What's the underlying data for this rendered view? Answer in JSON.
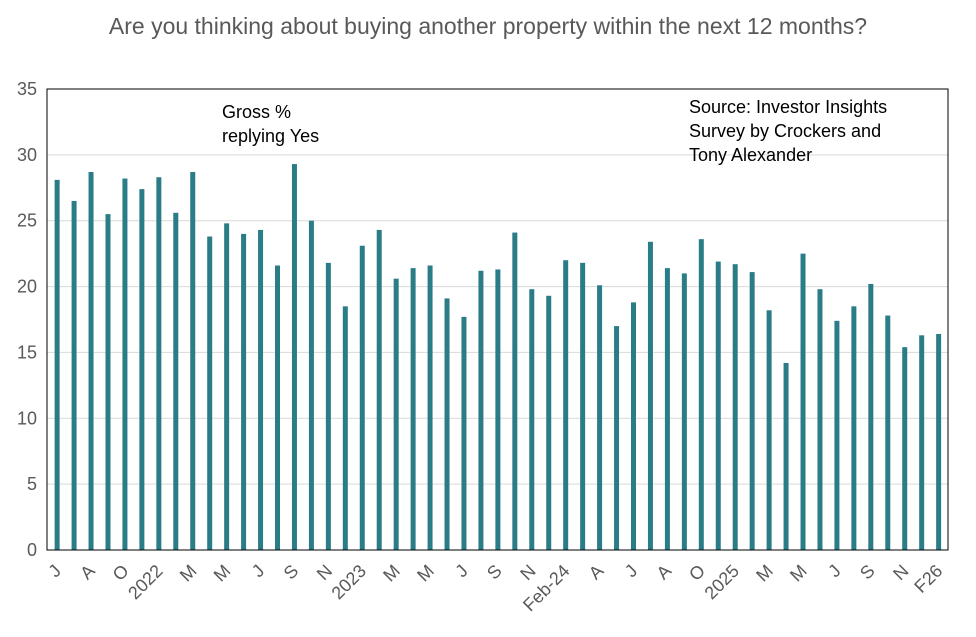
{
  "chart_data": {
    "type": "bar",
    "title": "Are you thinking about buying another property within the next 12 months?",
    "xlabel": "",
    "ylabel": "",
    "ylim": [
      0,
      35
    ],
    "yticks": [
      0,
      5,
      10,
      15,
      20,
      25,
      30,
      35
    ],
    "grid": true,
    "legend": "none",
    "bar_color": "#2A7C87",
    "annotations": [
      "Gross % replying Yes",
      "Source: Investor Insights Survey by Crockers and Tony Alexander"
    ],
    "categories": [
      "J",
      "",
      "A",
      "",
      "O",
      "",
      "2022",
      "",
      "M",
      "",
      "M",
      "",
      "J",
      "",
      "S",
      "",
      "N",
      "",
      "2023",
      "",
      "M",
      "",
      "M",
      "",
      "J",
      "",
      "S",
      "",
      "N",
      "",
      "Feb-24",
      "",
      "A",
      "",
      "J",
      "",
      "A",
      "",
      "O",
      "",
      "2025",
      "",
      "M",
      "",
      "M",
      "",
      "J",
      "",
      "S",
      "",
      "N",
      "",
      "F26"
    ],
    "values": [
      28.1,
      26.5,
      28.7,
      25.5,
      28.2,
      27.4,
      28.3,
      25.6,
      28.7,
      23.8,
      24.8,
      24.0,
      24.3,
      21.6,
      29.3,
      25.0,
      21.8,
      18.5,
      23.1,
      24.3,
      20.6,
      21.4,
      21.6,
      19.1,
      17.7,
      21.2,
      21.3,
      24.1,
      19.8,
      19.3,
      22.0,
      21.8,
      20.1,
      17.0,
      18.8,
      23.4,
      21.4,
      21.0,
      23.6,
      21.9,
      21.7,
      21.1,
      18.2,
      14.2,
      22.5,
      19.8,
      17.4,
      18.5,
      20.2,
      17.8,
      15.4,
      16.3,
      16.4
    ]
  }
}
